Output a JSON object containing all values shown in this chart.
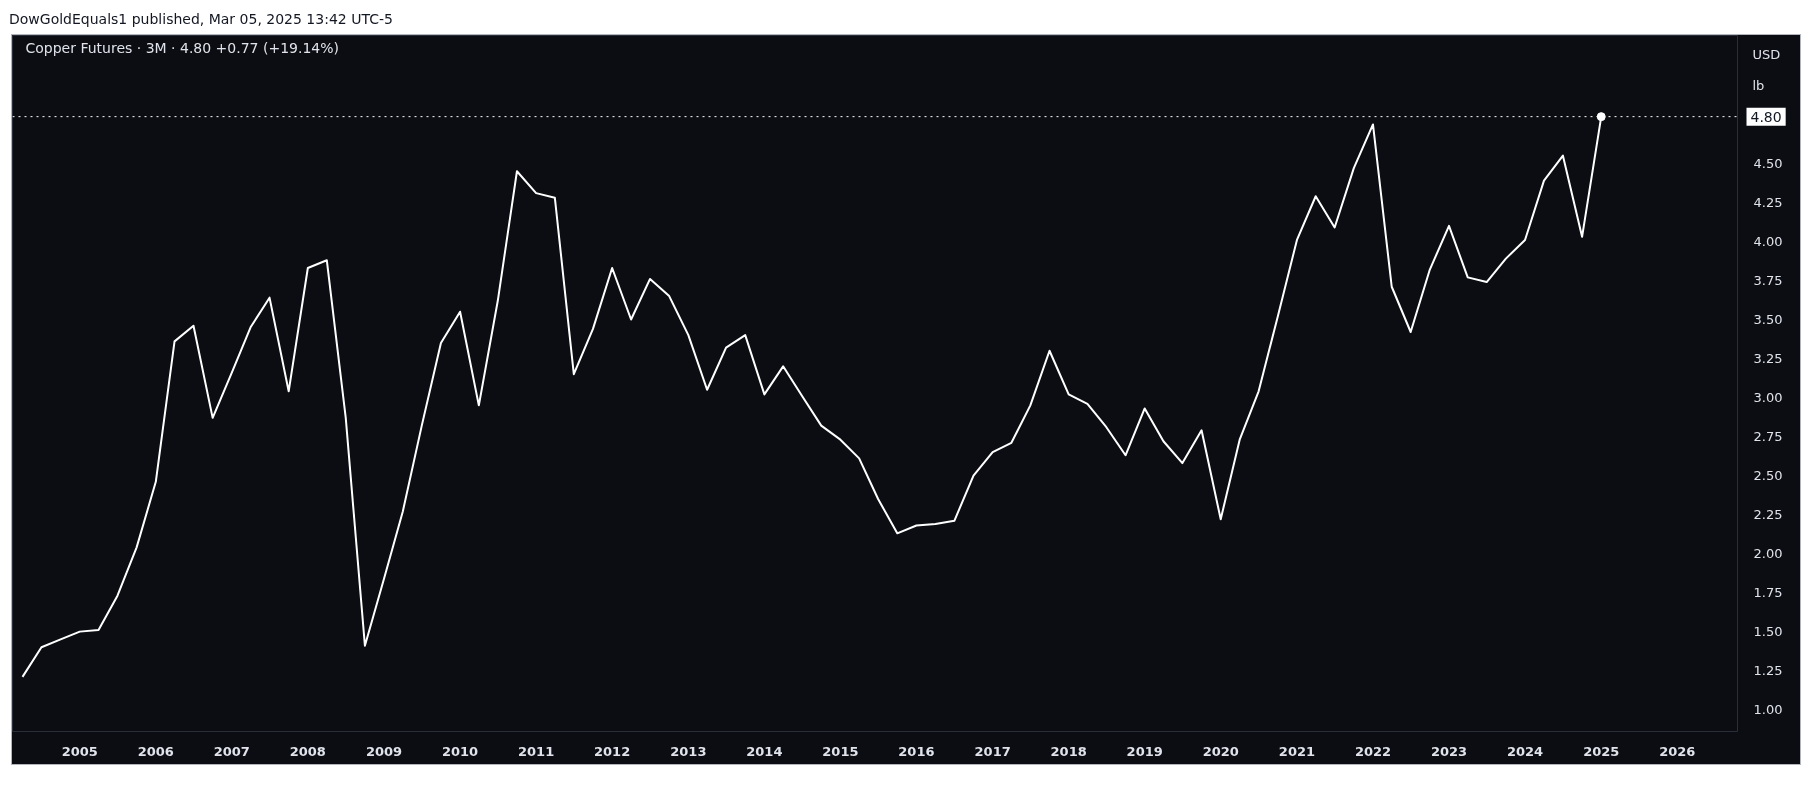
{
  "chart_data": {
    "type": "line",
    "title": "Copper Futures · 3M · 4.80 +0.77 (+19.14%)",
    "ylabel": "USD lb",
    "annotations": [
      "DowGoldEquals1 published, Mar 05, 2025 13:42 UTC-5"
    ],
    "x": [
      "2004-04",
      "2004-07",
      "2004-10",
      "2005-01",
      "2005-04",
      "2005-07",
      "2005-10",
      "2006-01",
      "2006-04",
      "2006-07",
      "2006-10",
      "2007-01",
      "2007-04",
      "2007-07",
      "2007-10",
      "2008-01",
      "2008-04",
      "2008-07",
      "2008-10",
      "2009-01",
      "2009-04",
      "2009-07",
      "2009-10",
      "2010-01",
      "2010-04",
      "2010-07",
      "2010-10",
      "2011-01",
      "2011-04",
      "2011-07",
      "2011-10",
      "2012-01",
      "2012-04",
      "2012-07",
      "2012-10",
      "2013-01",
      "2013-04",
      "2013-07",
      "2013-10",
      "2014-01",
      "2014-04",
      "2014-07",
      "2014-10",
      "2015-01",
      "2015-04",
      "2015-07",
      "2015-10",
      "2016-01",
      "2016-04",
      "2016-07",
      "2016-10",
      "2017-01",
      "2017-04",
      "2017-07",
      "2017-10",
      "2018-01",
      "2018-04",
      "2018-07",
      "2018-10",
      "2019-01",
      "2019-04",
      "2019-07",
      "2019-10",
      "2020-01",
      "2020-04",
      "2020-07",
      "2020-10",
      "2021-01",
      "2021-04",
      "2021-07",
      "2021-10",
      "2022-01",
      "2022-04",
      "2022-07",
      "2022-10",
      "2023-01",
      "2023-04",
      "2023-07",
      "2023-10",
      "2024-01",
      "2024-04",
      "2024-07",
      "2024-10",
      "2025-01"
    ],
    "series": [
      {
        "color": "#ffffff",
        "values": [
          1.21,
          1.4,
          1.45,
          1.5,
          1.51,
          1.73,
          2.04,
          2.46,
          3.36,
          3.46,
          2.87,
          3.16,
          3.45,
          3.64,
          3.04,
          3.83,
          3.88,
          2.87,
          1.41,
          1.84,
          2.27,
          2.82,
          3.35,
          3.55,
          2.95,
          3.62,
          4.45,
          4.31,
          4.28,
          3.15,
          3.44,
          3.83,
          3.5,
          3.76,
          3.65,
          3.4,
          3.05,
          3.32,
          3.4,
          3.02,
          3.2,
          3.01,
          2.82,
          2.73,
          2.61,
          2.35,
          2.13,
          2.18,
          2.19,
          2.21,
          2.5,
          2.65,
          2.71,
          2.95,
          3.3,
          3.02,
          2.96,
          2.81,
          2.63,
          2.93,
          2.72,
          2.58,
          2.79,
          2.22,
          2.73,
          3.04,
          3.52,
          4.01,
          4.29,
          4.09,
          4.47,
          4.75,
          3.71,
          3.42,
          3.82,
          4.1,
          3.77,
          3.74,
          3.89,
          4.01,
          4.39,
          4.55,
          4.03,
          4.8
        ]
      },
      {
        "type": "scatter",
        "color": "#ffffff",
        "marker": "circle",
        "x": [
          "2025-01"
        ],
        "values": [
          4.8
        ]
      }
    ],
    "xlim": [
      "2004-02-13",
      "2026-10-22"
    ],
    "xticks": [
      "2005",
      "2006",
      "2007",
      "2008",
      "2009",
      "2010",
      "2011",
      "2012",
      "2013",
      "2014",
      "2015",
      "2016",
      "2017",
      "2018",
      "2019",
      "2020",
      "2021",
      "2022",
      "2023",
      "2024",
      "2025",
      "2026"
    ],
    "ylim": [
      0.86,
      5.32
    ],
    "yticks": [
      {
        "value": 1,
        "label": "1.00"
      },
      1.25,
      {
        "value": 1.5,
        "label": "1.50"
      },
      1.75,
      {
        "value": 2,
        "label": "2.00"
      },
      2.25,
      {
        "value": 2.5,
        "label": "2.50"
      },
      2.75,
      {
        "value": 3,
        "label": "3.00"
      },
      3.25,
      {
        "value": 3.5,
        "label": "3.50"
      },
      3.75,
      {
        "value": 4,
        "label": "4.00"
      },
      4.25,
      {
        "value": 4.5,
        "label": "4.50"
      }
    ],
    "ref_lines": [
      {
        "axis": "y",
        "value": 4.8,
        "label": "4.80",
        "color": "#ffffff",
        "line_style": "dotted"
      }
    ]
  }
}
